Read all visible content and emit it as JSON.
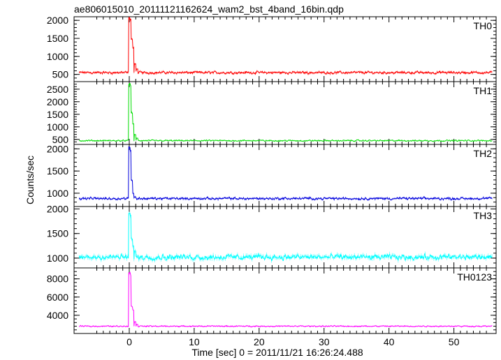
{
  "chart_data": {
    "type": "line",
    "title": "ae806015010_20111121162624_wam2_bst_4band_16bin.qdp",
    "xlabel": "Time [sec] 0 = 2011/11/21 16:26:24.488",
    "ylabel": "Counts/sec",
    "xlim": [
      -8.5,
      56.5
    ],
    "xticks": [
      0,
      10,
      20,
      30,
      40,
      50
    ],
    "grid": false,
    "legend": "none",
    "panels": [
      {
        "name": "TH0",
        "color": "#ff0000",
        "ylim": [
          300,
          2100
        ],
        "yticks": [
          500,
          1000,
          1500,
          2000
        ],
        "baseline": 550,
        "noise": 45,
        "peak": [
          [
            0.0,
            2100
          ],
          [
            0.15,
            2050
          ],
          [
            0.4,
            1500
          ],
          [
            0.6,
            1250
          ],
          [
            0.9,
            800
          ],
          [
            1.2,
            650
          ]
        ]
      },
      {
        "name": "TH1",
        "color": "#00dd00",
        "ylim": [
          300,
          2800
        ],
        "yticks": [
          500,
          1000,
          1500,
          2000,
          2500
        ],
        "baseline": 450,
        "noise": 35,
        "peak": [
          [
            0.0,
            2750
          ],
          [
            0.15,
            2700
          ],
          [
            0.4,
            1600
          ],
          [
            0.6,
            1150
          ],
          [
            0.9,
            700
          ],
          [
            1.2,
            550
          ]
        ]
      },
      {
        "name": "TH2",
        "color": "#0000dd",
        "ylim": [
          700,
          2100
        ],
        "yticks": [
          1000,
          1500,
          2000
        ],
        "baseline": 880,
        "noise": 35,
        "peak": [
          [
            0.0,
            2050
          ],
          [
            0.15,
            2000
          ],
          [
            0.4,
            1300
          ],
          [
            0.6,
            1000
          ],
          [
            0.9,
            920
          ]
        ]
      },
      {
        "name": "TH3",
        "color": "#00ffff",
        "ylim": [
          800,
          2050
        ],
        "yticks": [
          1000,
          1500,
          2000
        ],
        "baseline": 1020,
        "noise": 70,
        "peak": [
          [
            0.0,
            1950
          ],
          [
            0.15,
            1900
          ],
          [
            0.4,
            1400
          ],
          [
            0.6,
            1250
          ],
          [
            0.9,
            1150
          ]
        ]
      },
      {
        "name": "TH0123",
        "color": "#ff00ff",
        "ylim": [
          2000,
          9200
        ],
        "yticks": [
          4000,
          6000,
          8000
        ],
        "baseline": 2800,
        "noise": 90,
        "peak": [
          [
            0.0,
            8800
          ],
          [
            0.15,
            8600
          ],
          [
            0.4,
            5000
          ],
          [
            0.6,
            4600
          ],
          [
            0.9,
            3300
          ],
          [
            1.2,
            3000
          ]
        ]
      }
    ]
  }
}
